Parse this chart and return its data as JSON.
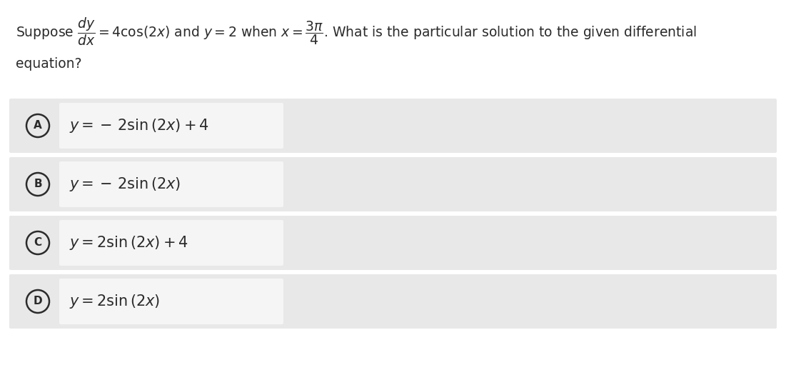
{
  "background_color": "#ffffff",
  "outer_panel_color": "#e8e8e8",
  "inner_box_color": "#f5f5f5",
  "text_color": "#2b2b2b",
  "circle_edge_color": "#2b2b2b",
  "font_size_question": 13.5,
  "font_size_options": 15,
  "font_size_letter": 11,
  "options": [
    {
      "label": "A",
      "expr": "$y = -\\, 2\\sin\\left(2x\\right) + 4$"
    },
    {
      "label": "B",
      "expr": "$y = -\\, 2\\sin\\left(2x\\right)$"
    },
    {
      "label": "C",
      "expr": "$y = 2\\sin\\left(2x\\right) + 4$"
    },
    {
      "label": "D",
      "expr": "$y = 2\\sin\\left(2x\\right)$"
    }
  ]
}
